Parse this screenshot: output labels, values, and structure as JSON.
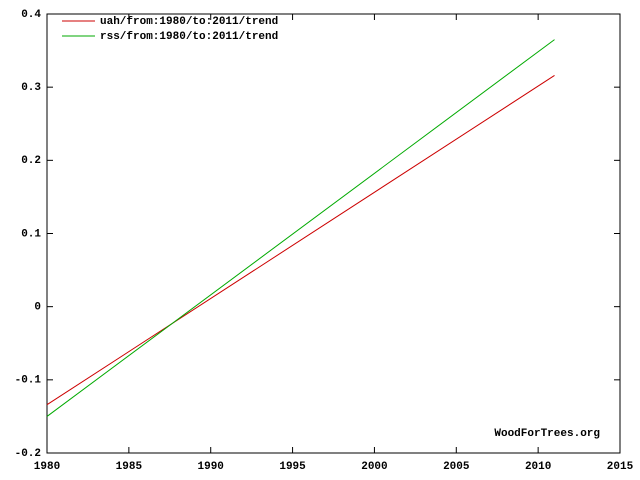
{
  "chart_data": {
    "type": "line",
    "x": [
      1980,
      2011
    ],
    "series": [
      {
        "name": "uah/from:1980/to:2011/trend",
        "color": "#cc0000",
        "values": [
          -0.134,
          0.316
        ]
      },
      {
        "name": "rss/from:1980/to:2011/trend",
        "color": "#00aa00",
        "values": [
          -0.15,
          0.365
        ]
      }
    ],
    "xlim": [
      1980,
      2015
    ],
    "xticks": [
      1980,
      1985,
      1990,
      1995,
      2000,
      2005,
      2010,
      2015
    ],
    "ylim": [
      -0.2,
      0.4
    ],
    "yticks": [
      -0.2,
      -0.1,
      0,
      0.1,
      0.2,
      0.3,
      0.4
    ],
    "legend": "top-left",
    "annotation": "WoodForTrees.org"
  }
}
